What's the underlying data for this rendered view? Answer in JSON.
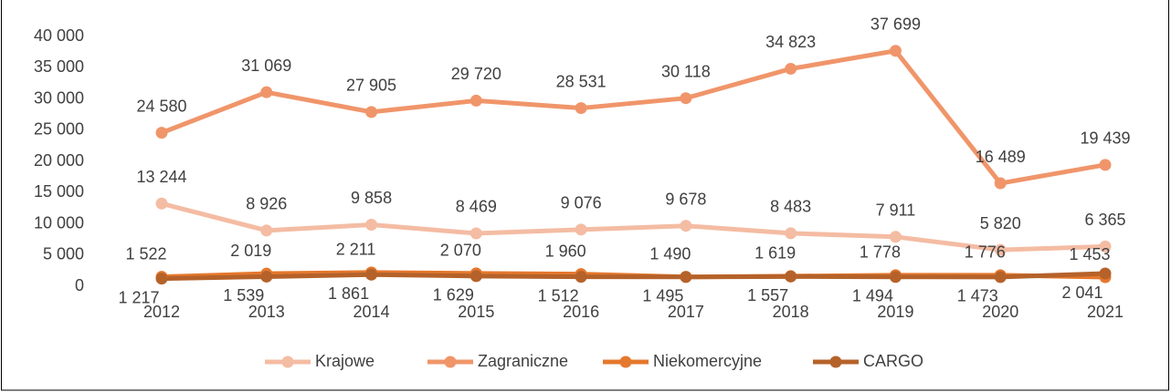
{
  "chart_data": {
    "type": "line",
    "categories": [
      "2012",
      "2013",
      "2014",
      "2015",
      "2016",
      "2017",
      "2018",
      "2019",
      "2020",
      "2021"
    ],
    "series": [
      {
        "name": "Krajowe",
        "color": "#f4bca3",
        "values": [
          13244,
          8926,
          9858,
          8469,
          9076,
          9678,
          8483,
          7911,
          5820,
          6365
        ],
        "value_labels": [
          "13 244",
          "8 926",
          "9 858",
          "8 469",
          "9 076",
          "9 678",
          "8 483",
          "7 911",
          "5 820",
          "6 365"
        ]
      },
      {
        "name": "Zagraniczne",
        "color": "#f0956a",
        "values": [
          24580,
          31069,
          27905,
          29720,
          28531,
          30118,
          34823,
          37699,
          16489,
          19439
        ],
        "value_labels": [
          "24 580",
          "31 069",
          "27 905",
          "29 720",
          "28 531",
          "30 118",
          "34 823",
          "37 699",
          "16 489",
          "19 439"
        ]
      },
      {
        "name": "Niekomercyjne",
        "color": "#e5782e",
        "values": [
          1522,
          2019,
          2211,
          2070,
          1960,
          1490,
          1619,
          1778,
          1776,
          1453
        ],
        "value_labels": [
          "1 522",
          "2 019",
          "2 211",
          "2 070",
          "1 960",
          "1 490",
          "1 619",
          "1 778",
          "1 776",
          "1 453"
        ]
      },
      {
        "name": "CARGO",
        "color": "#b5622a",
        "values": [
          1217,
          1539,
          1861,
          1629,
          1512,
          1495,
          1557,
          1494,
          1473,
          2041
        ],
        "value_labels": [
          "1 217",
          "1 539",
          "1 861",
          "1 629",
          "1 512",
          "1 495",
          "1 557",
          "1 494",
          "1 473",
          "2 041"
        ]
      }
    ],
    "ylim": [
      0,
      40000
    ],
    "yticks": [
      0,
      {
        "value": 5000,
        "label": "5 000"
      },
      {
        "value": 10000,
        "label": "10 000"
      },
      {
        "value": 15000,
        "label": "15 000"
      },
      {
        "value": 20000,
        "label": "20 000"
      },
      {
        "value": 25000,
        "label": "25 000"
      },
      {
        "value": 30000,
        "label": "30 000"
      },
      {
        "value": 35000,
        "label": "35 000"
      },
      {
        "value": 40000,
        "label": "40 000"
      }
    ],
    "legend": "bottom"
  }
}
